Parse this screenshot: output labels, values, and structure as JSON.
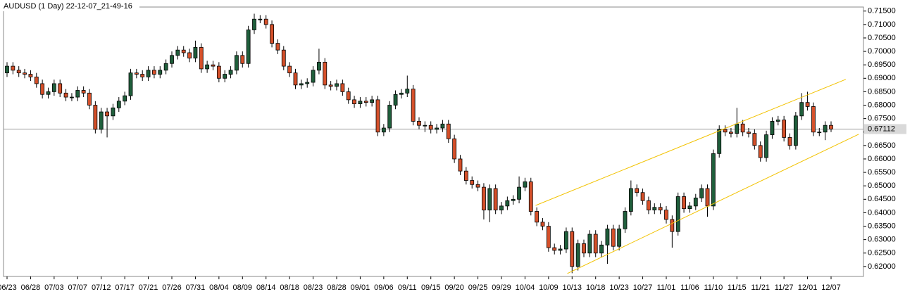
{
  "chart_data": {
    "type": "candlestick",
    "title": "AUDUSD (1 Day) 22-12-07_21-49-16",
    "categories": [
      "06/23",
      null,
      null,
      null,
      "06/28",
      null,
      null,
      null,
      "07/03",
      null,
      null,
      null,
      "07/07",
      null,
      null,
      null,
      "07/12",
      null,
      null,
      null,
      "07/17",
      null,
      null,
      null,
      "07/21",
      null,
      null,
      null,
      "07/26",
      null,
      null,
      null,
      "07/31",
      null,
      null,
      null,
      "08/04",
      null,
      null,
      null,
      "08/09",
      null,
      null,
      null,
      "08/14",
      null,
      null,
      null,
      "08/18",
      null,
      null,
      null,
      "08/23",
      null,
      null,
      null,
      "08/28",
      null,
      null,
      null,
      "09/01",
      null,
      null,
      null,
      "09/06",
      null,
      null,
      null,
      "09/11",
      null,
      null,
      null,
      "09/15",
      null,
      null,
      null,
      "09/20",
      null,
      null,
      null,
      "09/25",
      null,
      null,
      null,
      "09/29",
      null,
      null,
      null,
      "10/04",
      null,
      null,
      null,
      "10/09",
      null,
      null,
      null,
      "10/13",
      null,
      null,
      null,
      "10/18",
      null,
      null,
      null,
      "10/23",
      null,
      null,
      null,
      "10/27",
      null,
      null,
      null,
      "11/01",
      null,
      null,
      null,
      "11/06",
      null,
      null,
      null,
      "11/10",
      null,
      null,
      null,
      "11/15",
      null,
      null,
      null,
      "11/21",
      null,
      null,
      null,
      "11/27",
      null,
      null,
      null,
      "12/01",
      null,
      null,
      null,
      "12/07"
    ],
    "open": [
      0.692,
      0.6945,
      0.693,
      0.692,
      0.6915,
      0.6905,
      0.688,
      0.684,
      0.685,
      0.688,
      0.6845,
      0.683,
      0.683,
      0.6855,
      0.6845,
      0.68,
      0.671,
      0.6775,
      0.676,
      0.679,
      0.6815,
      0.6835,
      0.692,
      0.6915,
      0.6905,
      0.693,
      0.6915,
      0.693,
      0.6955,
      0.6985,
      0.7005,
      0.6995,
      0.6975,
      0.7015,
      0.6935,
      0.695,
      0.6945,
      0.69,
      0.6915,
      0.693,
      0.6985,
      0.6955,
      0.708,
      0.712,
      0.712,
      0.71,
      0.703,
      0.7005,
      0.6945,
      0.692,
      0.6875,
      0.688,
      0.6885,
      0.693,
      0.696,
      0.6875,
      0.687,
      0.688,
      0.685,
      0.682,
      0.6805,
      0.6815,
      0.681,
      0.682,
      0.67,
      0.6715,
      0.68,
      0.684,
      0.6845,
      0.686,
      0.674,
      0.6725,
      0.6725,
      0.671,
      0.6715,
      0.673,
      0.6675,
      0.66,
      0.6555,
      0.652,
      0.6505,
      0.6495,
      0.641,
      0.649,
      0.641,
      0.6425,
      0.6445,
      0.645,
      0.6495,
      0.6515,
      0.6405,
      0.6365,
      0.635,
      0.627,
      0.626,
      0.6265,
      0.633,
      0.62,
      0.6285,
      0.625,
      0.632,
      0.625,
      0.628,
      0.634,
      0.6275,
      0.634,
      0.6405,
      0.649,
      0.6475,
      0.6445,
      0.641,
      0.642,
      0.641,
      0.6375,
      0.633,
      0.646,
      0.6415,
      0.6425,
      0.6455,
      0.649,
      0.6425,
      0.662,
      0.671,
      0.67,
      0.6695,
      0.673,
      0.67,
      0.6695,
      0.665,
      0.6605,
      0.669,
      0.674,
      0.6745,
      0.668,
      0.665,
      0.676,
      0.681,
      0.6795,
      0.67,
      0.67,
      0.6725
    ],
    "high": [
      0.696,
      0.696,
      0.6945,
      0.6935,
      0.693,
      0.692,
      0.6895,
      0.6865,
      0.6895,
      0.6895,
      0.686,
      0.6845,
      0.687,
      0.687,
      0.686,
      0.6815,
      0.679,
      0.679,
      0.6805,
      0.683,
      0.685,
      0.6935,
      0.6935,
      0.693,
      0.6945,
      0.6945,
      0.6945,
      0.697,
      0.7,
      0.702,
      0.702,
      0.701,
      0.704,
      0.703,
      0.6965,
      0.6965,
      0.696,
      0.693,
      0.6945,
      0.7,
      0.7,
      0.7095,
      0.714,
      0.7135,
      0.7135,
      0.7115,
      0.7045,
      0.702,
      0.696,
      0.6935,
      0.6895,
      0.69,
      0.6945,
      0.701,
      0.6975,
      0.689,
      0.6895,
      0.6895,
      0.6865,
      0.6835,
      0.683,
      0.683,
      0.6835,
      0.6835,
      0.673,
      0.6815,
      0.6855,
      0.686,
      0.691,
      0.6875,
      0.6755,
      0.674,
      0.674,
      0.673,
      0.6745,
      0.6745,
      0.669,
      0.6615,
      0.657,
      0.6535,
      0.652,
      0.651,
      0.6505,
      0.6505,
      0.644,
      0.646,
      0.6465,
      0.6535,
      0.653,
      0.653,
      0.642,
      0.638,
      0.6365,
      0.6285,
      0.628,
      0.6345,
      0.6345,
      0.63,
      0.63,
      0.6335,
      0.6335,
      0.6295,
      0.6355,
      0.6355,
      0.6355,
      0.642,
      0.652,
      0.6505,
      0.649,
      0.646,
      0.6435,
      0.6435,
      0.6425,
      0.639,
      0.6475,
      0.6475,
      0.644,
      0.647,
      0.6505,
      0.6505,
      0.6635,
      0.6725,
      0.6725,
      0.6715,
      0.679,
      0.6745,
      0.6715,
      0.671,
      0.6665,
      0.6705,
      0.6755,
      0.676,
      0.676,
      0.6695,
      0.6775,
      0.6845,
      0.685,
      0.681,
      0.6715,
      0.674,
      0.674
    ],
    "low": [
      0.6905,
      0.6915,
      0.6905,
      0.69,
      0.689,
      0.6865,
      0.6825,
      0.6825,
      0.6835,
      0.683,
      0.6815,
      0.6815,
      0.6815,
      0.683,
      0.6785,
      0.6695,
      0.6695,
      0.668,
      0.6745,
      0.6775,
      0.68,
      0.682,
      0.69,
      0.689,
      0.689,
      0.69,
      0.69,
      0.6915,
      0.694,
      0.697,
      0.698,
      0.696,
      0.696,
      0.692,
      0.692,
      0.693,
      0.6885,
      0.6885,
      0.69,
      0.6915,
      0.694,
      0.694,
      0.7065,
      0.7105,
      0.7085,
      0.7015,
      0.699,
      0.693,
      0.6905,
      0.686,
      0.686,
      0.6865,
      0.687,
      0.6915,
      0.686,
      0.6855,
      0.6855,
      0.6835,
      0.6805,
      0.679,
      0.679,
      0.6795,
      0.6795,
      0.6685,
      0.6685,
      0.67,
      0.6785,
      0.6825,
      0.683,
      0.6725,
      0.671,
      0.67,
      0.6695,
      0.6695,
      0.67,
      0.666,
      0.6585,
      0.654,
      0.6505,
      0.649,
      0.648,
      0.6375,
      0.6365,
      0.6395,
      0.6395,
      0.641,
      0.643,
      0.6435,
      0.648,
      0.639,
      0.635,
      0.6335,
      0.6255,
      0.6245,
      0.6245,
      0.625,
      0.6175,
      0.6185,
      0.6235,
      0.6235,
      0.6235,
      0.6235,
      0.621,
      0.626,
      0.626,
      0.6325,
      0.639,
      0.646,
      0.643,
      0.6395,
      0.6395,
      0.6395,
      0.636,
      0.627,
      0.6315,
      0.64,
      0.64,
      0.641,
      0.644,
      0.6385,
      0.641,
      0.6605,
      0.6685,
      0.668,
      0.668,
      0.6685,
      0.668,
      0.6635,
      0.659,
      0.659,
      0.6675,
      0.6725,
      0.6665,
      0.6635,
      0.6635,
      0.6745,
      0.678,
      0.6685,
      0.6685,
      0.667,
      0.67
    ],
    "close": [
      0.6945,
      0.693,
      0.692,
      0.6915,
      0.6905,
      0.688,
      0.684,
      0.685,
      0.688,
      0.6845,
      0.683,
      0.683,
      0.6855,
      0.6845,
      0.68,
      0.671,
      0.6775,
      0.676,
      0.679,
      0.6815,
      0.6835,
      0.692,
      0.6915,
      0.6905,
      0.693,
      0.6915,
      0.693,
      0.6955,
      0.6985,
      0.7005,
      0.6995,
      0.6975,
      0.7015,
      0.6935,
      0.695,
      0.6945,
      0.69,
      0.6915,
      0.693,
      0.6985,
      0.6955,
      0.708,
      0.712,
      0.712,
      0.71,
      0.703,
      0.7005,
      0.6945,
      0.692,
      0.6875,
      0.688,
      0.6885,
      0.693,
      0.696,
      0.6875,
      0.687,
      0.688,
      0.685,
      0.682,
      0.6805,
      0.6815,
      0.681,
      0.682,
      0.67,
      0.6715,
      0.68,
      0.684,
      0.6845,
      0.686,
      0.674,
      0.6725,
      0.6725,
      0.671,
      0.6715,
      0.673,
      0.6675,
      0.66,
      0.6555,
      0.652,
      0.6505,
      0.6495,
      0.641,
      0.649,
      0.641,
      0.6425,
      0.6445,
      0.645,
      0.6495,
      0.6515,
      0.6405,
      0.6365,
      0.635,
      0.627,
      0.626,
      0.6265,
      0.633,
      0.62,
      0.6285,
      0.625,
      0.632,
      0.625,
      0.628,
      0.634,
      0.6275,
      0.634,
      0.6405,
      0.649,
      0.6475,
      0.6445,
      0.641,
      0.642,
      0.641,
      0.6375,
      0.633,
      0.646,
      0.6415,
      0.6425,
      0.6455,
      0.649,
      0.6425,
      0.662,
      0.671,
      0.67,
      0.6695,
      0.673,
      0.67,
      0.6695,
      0.665,
      0.6605,
      0.669,
      0.674,
      0.6745,
      0.668,
      0.665,
      0.676,
      0.681,
      0.6795,
      0.67,
      0.67,
      0.6725,
      0.67112
    ],
    "up_color": "#1f5e3b",
    "down_color": "#d5502a",
    "ylim": [
      0.6163,
      0.7165
    ],
    "yticks": [
      {
        "value": 0.62,
        "label": "0.62000"
      },
      {
        "value": 0.625,
        "label": "0.62500"
      },
      {
        "value": 0.63,
        "label": "0.63000"
      },
      {
        "value": 0.635,
        "label": "0.63500"
      },
      {
        "value": 0.64,
        "label": "0.64000"
      },
      {
        "value": 0.645,
        "label": "0.64500"
      },
      {
        "value": 0.65,
        "label": "0.65000"
      },
      {
        "value": 0.655,
        "label": "0.65500"
      },
      {
        "value": 0.66,
        "label": "0.66000"
      },
      {
        "value": 0.665,
        "label": "0.66500"
      },
      {
        "value": 0.67,
        "label": "0.67000"
      },
      {
        "value": 0.675,
        "label": "0.67500"
      },
      {
        "value": 0.68,
        "label": "0.68000"
      },
      {
        "value": 0.685,
        "label": "0.68500"
      },
      {
        "value": 0.69,
        "label": "0.69000"
      },
      {
        "value": 0.695,
        "label": "0.69500"
      },
      {
        "value": 0.7,
        "label": "0.70000"
      },
      {
        "value": 0.705,
        "label": "0.70500"
      },
      {
        "value": 0.71,
        "label": "0.71000"
      },
      {
        "value": 0.715,
        "label": "0.71500"
      }
    ],
    "last_price": 0.67112,
    "trendlines": [
      {
        "color": "#f2c200",
        "x": [
          89.8,
          142.5
        ],
        "y": [
          0.6427,
          0.6896
        ]
      },
      {
        "color": "#f2c200",
        "x": [
          95.2,
          144.7
        ],
        "y": [
          0.6174,
          0.6692
        ]
      }
    ]
  }
}
